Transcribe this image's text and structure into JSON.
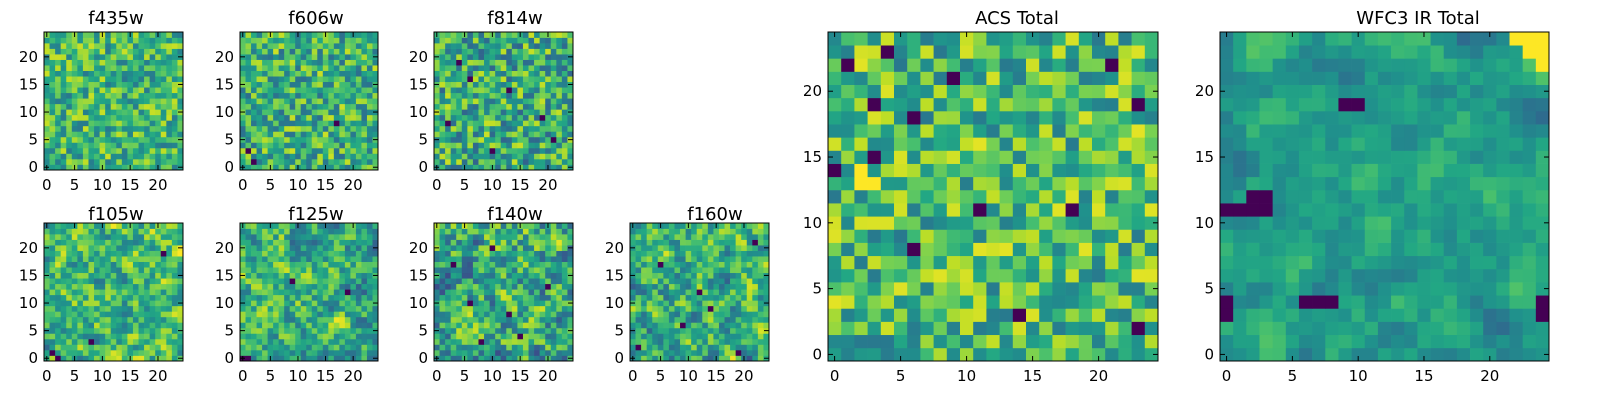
{
  "chart_data": [
    {
      "type": "heatmap",
      "title": "f435w",
      "grid_size": 25,
      "colormap": "viridis",
      "xlim": [
        -0.5,
        24.5
      ],
      "ylim": [
        -0.5,
        24.5
      ],
      "xticks": [
        0,
        5,
        10,
        15,
        20
      ],
      "yticks": [
        0,
        5,
        10,
        15,
        20
      ],
      "xtick_labels": [
        "0",
        "5",
        "10",
        "15",
        "20"
      ],
      "ytick_labels": [
        "0",
        "5",
        "10",
        "15",
        "20"
      ],
      "values_pattern": {
        "mean": 0.66,
        "spread": 0.26,
        "smooth": 0,
        "seed": 11,
        "lows": []
      }
    },
    {
      "type": "heatmap",
      "title": "f606w",
      "grid_size": 25,
      "colormap": "viridis",
      "xlim": [
        -0.5,
        24.5
      ],
      "ylim": [
        -0.5,
        24.5
      ],
      "xticks": [
        0,
        5,
        10,
        15,
        20
      ],
      "yticks": [
        0,
        5,
        10,
        15,
        20
      ],
      "xtick_labels": [
        "0",
        "5",
        "10",
        "15",
        "20"
      ],
      "ytick_labels": [
        "0",
        "5",
        "10",
        "15",
        "20"
      ],
      "values_pattern": {
        "mean": 0.64,
        "spread": 0.28,
        "smooth": 0,
        "seed": 23,
        "lows": [
          [
            1,
            3
          ],
          [
            17,
            8
          ],
          [
            2,
            1
          ]
        ]
      }
    },
    {
      "type": "heatmap",
      "title": "f814w",
      "grid_size": 25,
      "colormap": "viridis",
      "xlim": [
        -0.5,
        24.5
      ],
      "ylim": [
        -0.5,
        24.5
      ],
      "xticks": [
        0,
        5,
        10,
        15,
        20
      ],
      "yticks": [
        0,
        5,
        10,
        15,
        20
      ],
      "xtick_labels": [
        "0",
        "5",
        "10",
        "15",
        "20"
      ],
      "ytick_labels": [
        "0",
        "5",
        "10",
        "15",
        "20"
      ],
      "values_pattern": {
        "mean": 0.62,
        "spread": 0.3,
        "smooth": 0,
        "seed": 37,
        "lows": [
          [
            4,
            19
          ],
          [
            6,
            16
          ],
          [
            13,
            14
          ],
          [
            19,
            9
          ],
          [
            10,
            3
          ],
          [
            21,
            5
          ],
          [
            2,
            8
          ]
        ]
      }
    },
    {
      "type": "heatmap",
      "title": "f105w",
      "grid_size": 25,
      "colormap": "viridis",
      "xlim": [
        -0.5,
        24.5
      ],
      "ylim": [
        -0.5,
        24.5
      ],
      "xticks": [
        0,
        5,
        10,
        15,
        20
      ],
      "yticks": [
        0,
        5,
        10,
        15,
        20
      ],
      "xtick_labels": [
        "0",
        "5",
        "10",
        "15",
        "20"
      ],
      "ytick_labels": [
        "0",
        "5",
        "10",
        "15",
        "20"
      ],
      "values_pattern": {
        "mean": 0.68,
        "spread": 0.34,
        "smooth": 1,
        "seed": 41,
        "lows": [
          [
            1,
            1
          ],
          [
            2,
            0
          ],
          [
            8,
            3
          ],
          [
            21,
            19
          ]
        ]
      }
    },
    {
      "type": "heatmap",
      "title": "f125w",
      "grid_size": 25,
      "colormap": "viridis",
      "xlim": [
        -0.5,
        24.5
      ],
      "ylim": [
        -0.5,
        24.5
      ],
      "xticks": [
        0,
        5,
        10,
        15,
        20
      ],
      "yticks": [
        0,
        5,
        10,
        15,
        20
      ],
      "xtick_labels": [
        "0",
        "5",
        "10",
        "15",
        "20"
      ],
      "ytick_labels": [
        "0",
        "5",
        "10",
        "15",
        "20"
      ],
      "values_pattern": {
        "mean": 0.64,
        "spread": 0.34,
        "smooth": 1,
        "seed": 53,
        "lows": [
          [
            0,
            0
          ],
          [
            1,
            0
          ],
          [
            9,
            14
          ],
          [
            19,
            12
          ]
        ]
      }
    },
    {
      "type": "heatmap",
      "title": "f140w",
      "grid_size": 25,
      "colormap": "viridis",
      "xlim": [
        -0.5,
        24.5
      ],
      "ylim": [
        -0.5,
        24.5
      ],
      "xticks": [
        0,
        5,
        10,
        15,
        20
      ],
      "yticks": [
        0,
        5,
        10,
        15,
        20
      ],
      "xtick_labels": [
        "0",
        "5",
        "10",
        "15",
        "20"
      ],
      "ytick_labels": [
        "0",
        "5",
        "10",
        "15",
        "20"
      ],
      "values_pattern": {
        "mean": 0.6,
        "spread": 0.36,
        "smooth": 1,
        "seed": 67,
        "lows": [
          [
            3,
            17
          ],
          [
            10,
            20
          ],
          [
            8,
            3
          ],
          [
            15,
            4
          ],
          [
            20,
            13
          ],
          [
            6,
            10
          ],
          [
            13,
            8
          ]
        ]
      }
    },
    {
      "type": "heatmap",
      "title": "f160w",
      "grid_size": 25,
      "colormap": "viridis",
      "xlim": [
        -0.5,
        24.5
      ],
      "ylim": [
        -0.5,
        24.5
      ],
      "xticks": [
        0,
        5,
        10,
        15,
        20
      ],
      "yticks": [
        0,
        5,
        10,
        15,
        20
      ],
      "xtick_labels": [
        "0",
        "5",
        "10",
        "15",
        "20"
      ],
      "ytick_labels": [
        "0",
        "5",
        "10",
        "15",
        "20"
      ],
      "values_pattern": {
        "mean": 0.62,
        "spread": 0.36,
        "smooth": 1,
        "seed": 79,
        "lows": [
          [
            5,
            17
          ],
          [
            12,
            12
          ],
          [
            9,
            6
          ],
          [
            14,
            9
          ],
          [
            1,
            2
          ],
          [
            19,
            1
          ],
          [
            22,
            21
          ]
        ]
      }
    },
    {
      "type": "heatmap",
      "title": "ACS Total",
      "grid_size": 25,
      "colormap": "viridis",
      "xlim": [
        -0.5,
        24.5
      ],
      "ylim": [
        -0.5,
        24.5
      ],
      "xticks": [
        0,
        5,
        10,
        15,
        20
      ],
      "yticks": [
        0,
        5,
        10,
        15,
        20
      ],
      "xtick_labels": [
        "0",
        "5",
        "10",
        "15",
        "20"
      ],
      "ytick_labels": [
        "0",
        "5",
        "10",
        "15",
        "20"
      ],
      "values_pattern": {
        "mean": 0.68,
        "spread": 0.28,
        "smooth": 0,
        "seed": 97,
        "lows": [
          [
            1,
            22
          ],
          [
            4,
            23
          ],
          [
            3,
            19
          ],
          [
            6,
            18
          ],
          [
            9,
            21
          ],
          [
            21,
            22
          ],
          [
            23,
            19
          ],
          [
            0,
            14
          ],
          [
            3,
            15
          ],
          [
            11,
            11
          ],
          [
            18,
            11
          ],
          [
            23,
            2
          ],
          [
            6,
            8
          ],
          [
            14,
            3
          ]
        ],
        "highs": [
          [
            2,
            14
          ],
          [
            3,
            13
          ],
          [
            2,
            13
          ]
        ]
      }
    },
    {
      "type": "heatmap",
      "title": "WFC3 IR Total",
      "grid_size": 25,
      "colormap": "viridis",
      "xlim": [
        -0.5,
        24.5
      ],
      "ylim": [
        -0.5,
        24.5
      ],
      "xticks": [
        0,
        5,
        10,
        15,
        20
      ],
      "yticks": [
        0,
        5,
        10,
        15,
        20
      ],
      "xtick_labels": [
        "0",
        "5",
        "10",
        "15",
        "20"
      ],
      "ytick_labels": [
        "0",
        "5",
        "10",
        "15",
        "20"
      ],
      "values_pattern": {
        "mean": 0.55,
        "spread": 0.2,
        "smooth": 2,
        "seed": 113,
        "lows": [
          [
            0,
            11
          ],
          [
            1,
            11
          ],
          [
            2,
            11
          ],
          [
            2,
            12
          ],
          [
            3,
            12
          ],
          [
            3,
            11
          ],
          [
            0,
            3
          ],
          [
            0,
            4
          ],
          [
            6,
            4
          ],
          [
            7,
            4
          ],
          [
            8,
            4
          ],
          [
            24,
            3
          ],
          [
            24,
            4
          ],
          [
            9,
            19
          ],
          [
            10,
            19
          ]
        ],
        "highs": [
          [
            22,
            24
          ],
          [
            23,
            24
          ],
          [
            24,
            24
          ],
          [
            24,
            23
          ],
          [
            23,
            23
          ],
          [
            24,
            22
          ]
        ]
      }
    }
  ]
}
